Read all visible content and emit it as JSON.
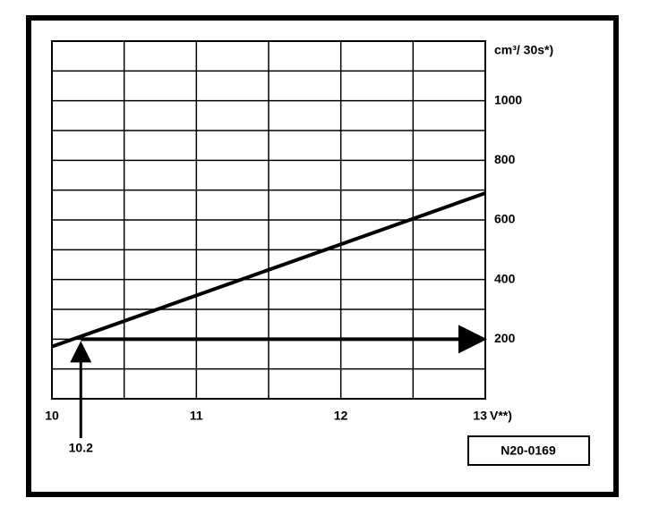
{
  "chart_data": {
    "type": "line",
    "y_axis_label": "cm³/ 30s*)",
    "x_axis_label": "V**)",
    "x": [
      10,
      13
    ],
    "values": [
      175,
      690
    ],
    "color": "#000000",
    "xlim": [
      10,
      13
    ],
    "ylim": [
      0,
      1200
    ],
    "xticks": [
      10,
      11,
      12,
      13
    ],
    "yticks": [
      200,
      400,
      600,
      800,
      1000
    ],
    "minor_xticks": [
      10.5,
      11.5,
      12.5
    ],
    "minor_yticks": [
      100,
      300,
      500,
      700,
      900,
      1100
    ],
    "grid": true,
    "marker": {
      "x": 10.2,
      "y": 200
    },
    "figure_code": "N20-0169"
  }
}
